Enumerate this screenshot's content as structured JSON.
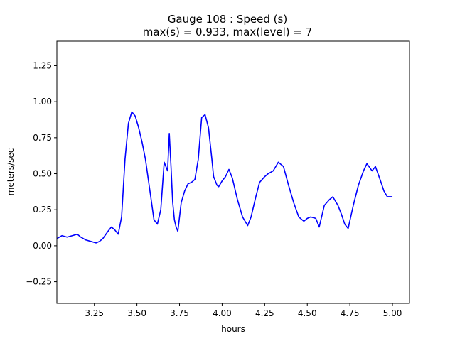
{
  "chart_data": {
    "type": "line",
    "title_line1": "Gauge 108 : Speed (s)",
    "title_line2": "max(s) =   0.933,    max(level) = 7",
    "xlabel": "hours",
    "ylabel": "meters/sec",
    "xlim": [
      3.03,
      5.1
    ],
    "ylim": [
      -0.4,
      1.42
    ],
    "xticks": [
      3.25,
      3.5,
      3.75,
      4.0,
      4.25,
      4.5,
      4.75,
      5.0
    ],
    "xtick_labels": [
      "3.25",
      "3.50",
      "3.75",
      "4.00",
      "4.25",
      "4.50",
      "4.75",
      "5.00"
    ],
    "yticks": [
      -0.25,
      0.0,
      0.25,
      0.5,
      0.75,
      1.0,
      1.25
    ],
    "ytick_labels": [
      "−0.25",
      "0.00",
      "0.25",
      "0.50",
      "0.75",
      "1.00",
      "1.25"
    ],
    "grid": false,
    "series": [
      {
        "color": "#0000ff",
        "x": [
          3.03,
          3.06,
          3.09,
          3.12,
          3.15,
          3.17,
          3.2,
          3.23,
          3.26,
          3.28,
          3.3,
          3.33,
          3.35,
          3.37,
          3.39,
          3.41,
          3.43,
          3.45,
          3.47,
          3.49,
          3.51,
          3.53,
          3.55,
          3.58,
          3.6,
          3.62,
          3.64,
          3.66,
          3.68,
          3.69,
          3.7,
          3.705,
          3.71,
          3.72,
          3.73,
          3.74,
          3.76,
          3.78,
          3.8,
          3.82,
          3.84,
          3.86,
          3.88,
          3.9,
          3.92,
          3.94,
          3.95,
          3.97,
          3.98,
          4.0,
          4.02,
          4.04,
          4.06,
          4.09,
          4.12,
          4.15,
          4.17,
          4.2,
          4.22,
          4.25,
          4.27,
          4.3,
          4.33,
          4.36,
          4.39,
          4.42,
          4.45,
          4.48,
          4.5,
          4.52,
          4.55,
          4.57,
          4.6,
          4.63,
          4.65,
          4.68,
          4.7,
          4.72,
          4.74,
          4.77,
          4.8,
          4.83,
          4.85,
          4.88,
          4.9,
          4.93,
          4.95,
          4.97,
          4.98,
          5.0
        ],
        "y": [
          0.05,
          0.07,
          0.06,
          0.07,
          0.08,
          0.06,
          0.04,
          0.03,
          0.02,
          0.03,
          0.05,
          0.1,
          0.13,
          0.11,
          0.08,
          0.2,
          0.6,
          0.85,
          0.93,
          0.9,
          0.82,
          0.72,
          0.6,
          0.35,
          0.18,
          0.15,
          0.25,
          0.58,
          0.52,
          0.78,
          0.55,
          0.42,
          0.3,
          0.18,
          0.13,
          0.1,
          0.3,
          0.38,
          0.43,
          0.44,
          0.46,
          0.6,
          0.89,
          0.91,
          0.82,
          0.6,
          0.48,
          0.42,
          0.41,
          0.45,
          0.48,
          0.53,
          0.47,
          0.32,
          0.2,
          0.14,
          0.2,
          0.35,
          0.44,
          0.48,
          0.5,
          0.52,
          0.58,
          0.55,
          0.42,
          0.3,
          0.2,
          0.17,
          0.19,
          0.2,
          0.19,
          0.13,
          0.28,
          0.32,
          0.34,
          0.28,
          0.22,
          0.15,
          0.12,
          0.28,
          0.42,
          0.52,
          0.57,
          0.52,
          0.55,
          0.45,
          0.38,
          0.34,
          0.34,
          0.34
        ]
      }
    ]
  }
}
